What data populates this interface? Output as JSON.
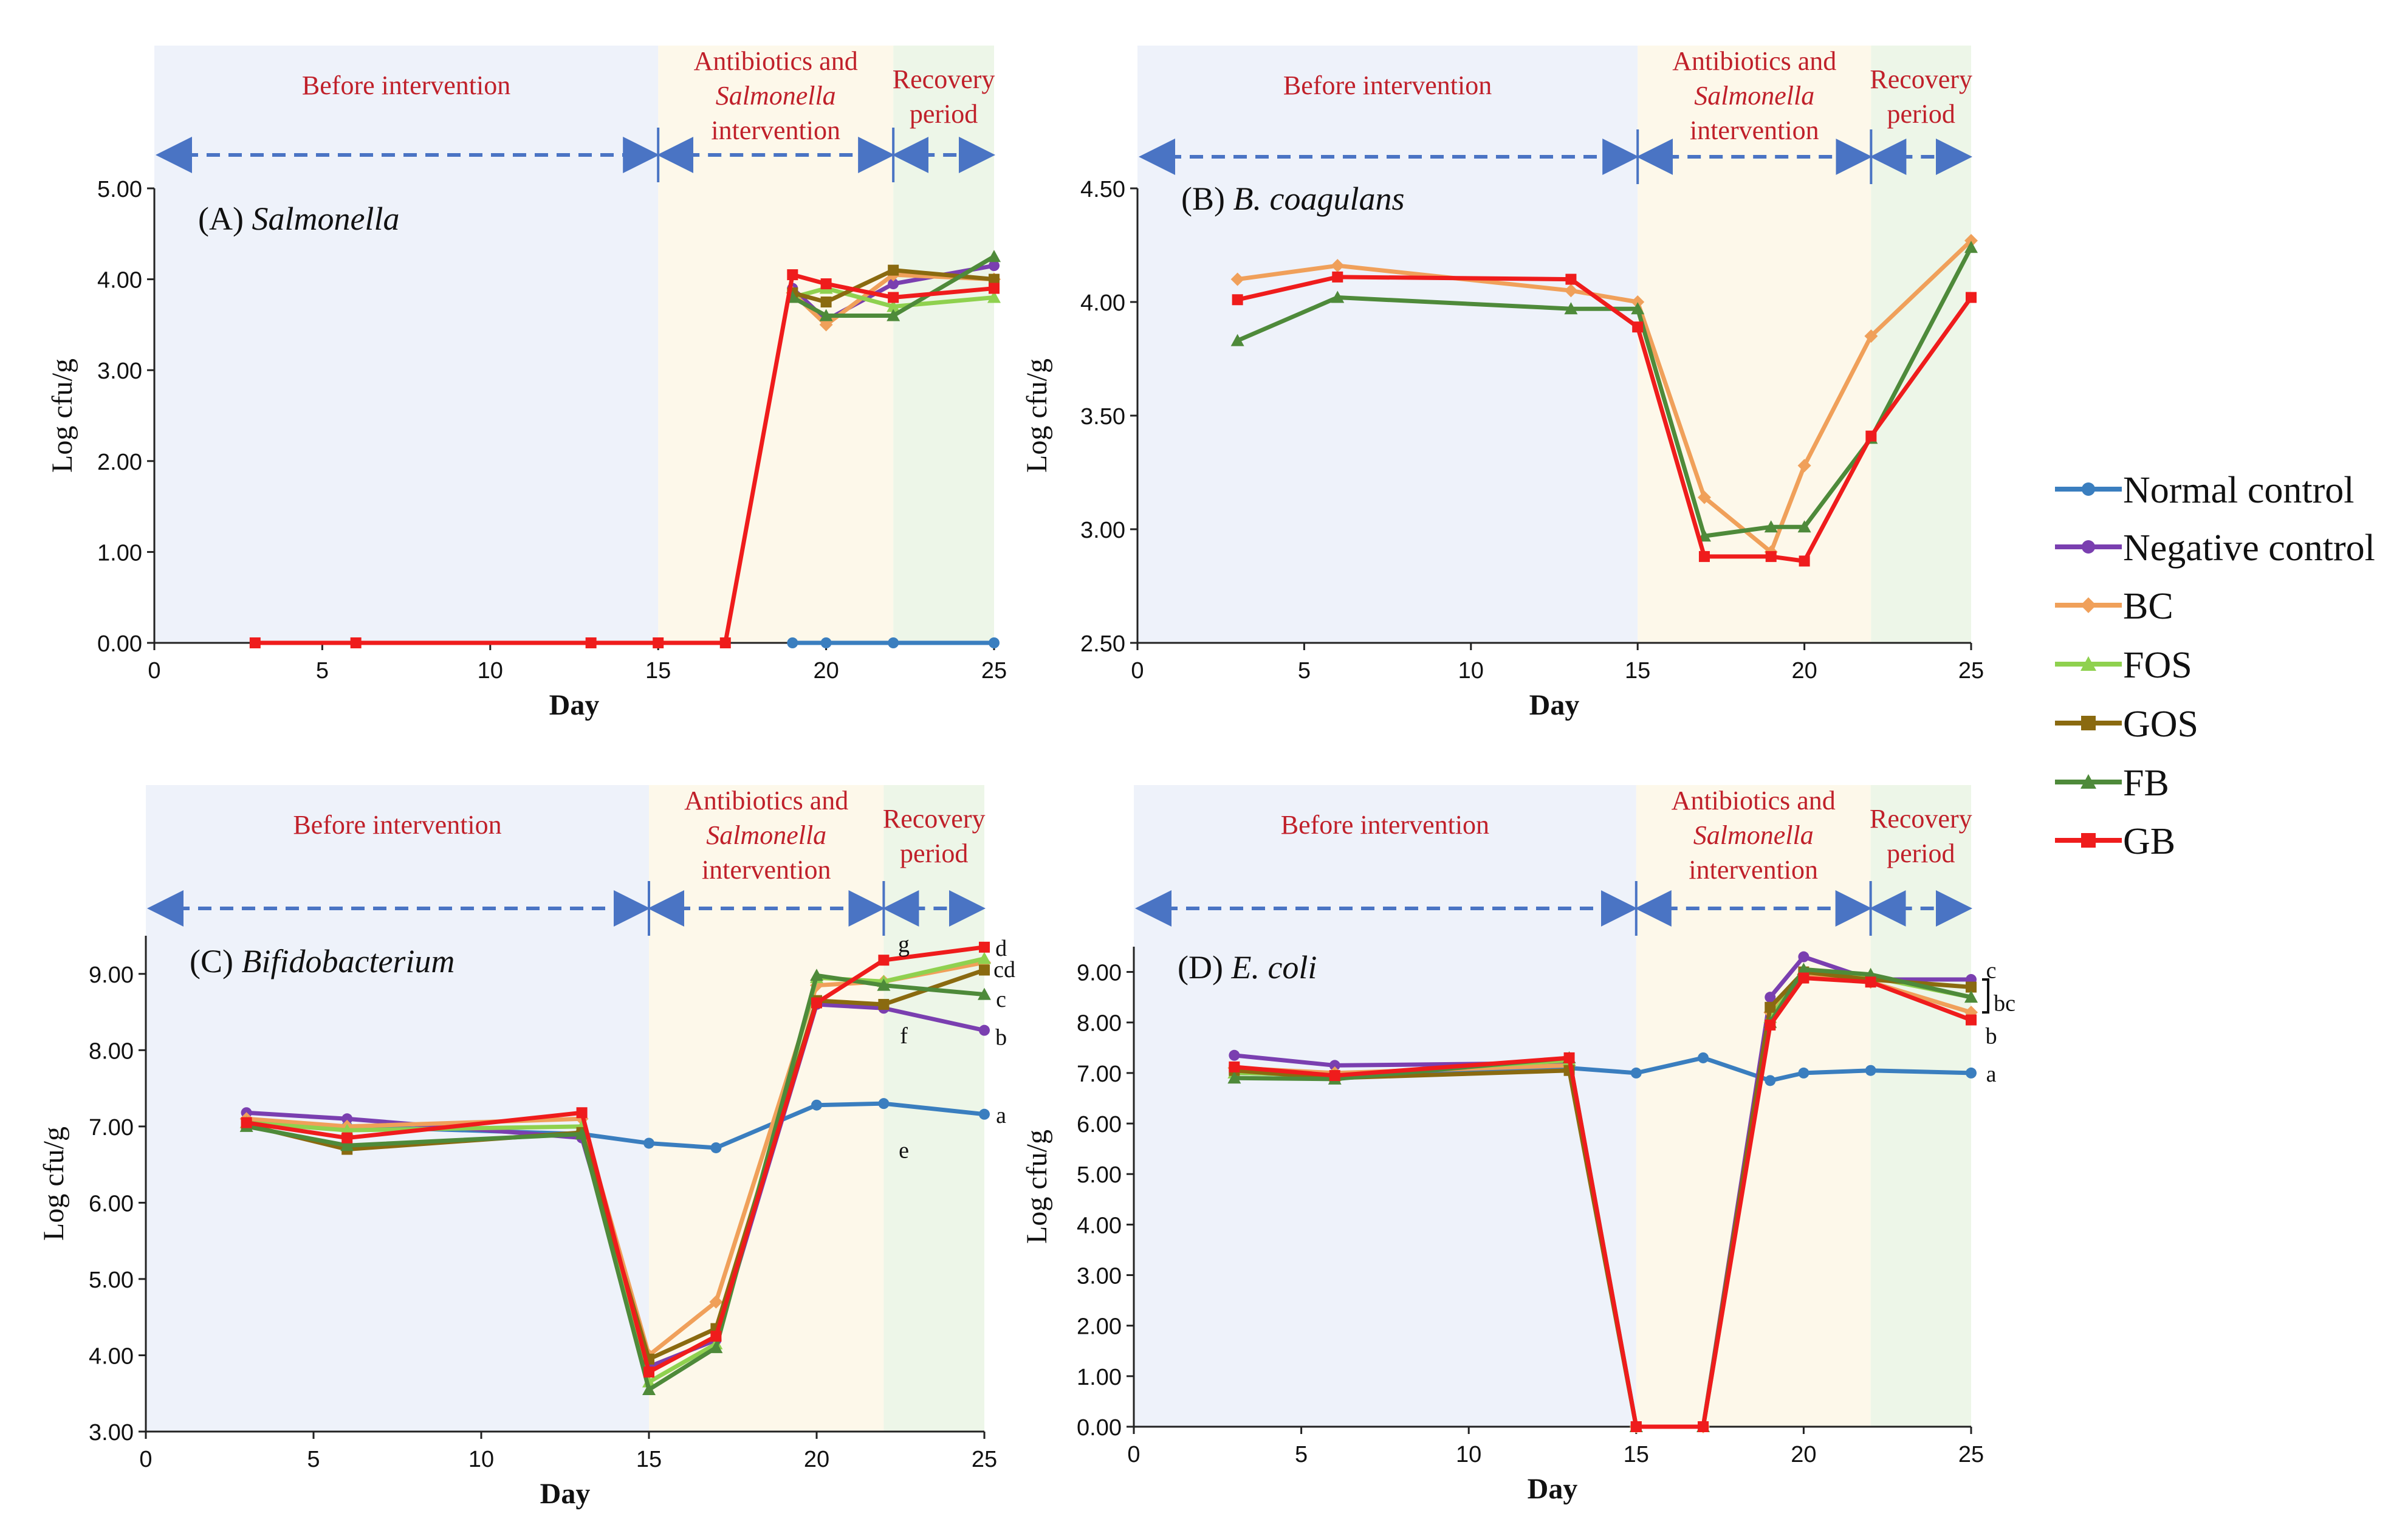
{
  "colors": {
    "normal": "#3a7ebf",
    "negative": "#7a3fb0",
    "bc": "#f0a05a",
    "fos": "#8fd14f",
    "gos": "#8a6a10",
    "fb": "#4e8a3a",
    "gb": "#ef1c1c",
    "before_bg": "#eef2fa",
    "abx_bg": "#fdf8ea",
    "recovery_bg": "#edf6e8",
    "period_text": "#c0202a",
    "arrow": "#4a74c4"
  },
  "legend": [
    "Normal control",
    "Negative control",
    "BC",
    "FOS",
    "GOS",
    "FB",
    "GB"
  ],
  "periods": {
    "before": "Before intervention",
    "abx_line1": "Antibiotics and",
    "abx_italic": "Salmonella",
    "abx_line3": "intervention",
    "recovery_line1": "Recovery",
    "recovery_line2": "period"
  },
  "chart_data": [
    {
      "id": "A",
      "type": "line",
      "panel_letter": "(A)",
      "title": "Salmonella",
      "xlabel": "Day",
      "ylabel": "Log cfu/g",
      "xlim": [
        0,
        25
      ],
      "ylim": [
        0,
        5
      ],
      "xticks": [
        0,
        5,
        10,
        15,
        20,
        25
      ],
      "yticks": [
        0,
        1,
        2,
        3,
        4,
        5
      ],
      "ytick_labels": [
        "0.00",
        "1.00",
        "2.00",
        "3.00",
        "4.00",
        "5.00"
      ],
      "series": [
        {
          "name": "Normal control",
          "key": "normal",
          "x": [
            19,
            20,
            22,
            25
          ],
          "y": [
            0,
            0,
            0,
            0
          ]
        },
        {
          "name": "Negative control",
          "key": "negative",
          "x": [
            19,
            20,
            22,
            25
          ],
          "y": [
            3.9,
            3.55,
            3.95,
            4.15
          ]
        },
        {
          "name": "BC",
          "key": "bc",
          "x": [
            19,
            20,
            22,
            25
          ],
          "y": [
            3.85,
            3.5,
            4.05,
            4.0
          ]
        },
        {
          "name": "FOS",
          "key": "fos",
          "x": [
            19,
            20,
            22,
            25
          ],
          "y": [
            3.8,
            3.9,
            3.7,
            3.8
          ]
        },
        {
          "name": "GOS",
          "key": "gos",
          "x": [
            19,
            20,
            22,
            25
          ],
          "y": [
            3.85,
            3.75,
            4.1,
            4.0
          ]
        },
        {
          "name": "FB",
          "key": "fb",
          "x": [
            19,
            20,
            22,
            25
          ],
          "y": [
            3.8,
            3.6,
            3.6,
            4.25
          ]
        },
        {
          "name": "GB",
          "key": "gb",
          "x": [
            3,
            6,
            13,
            15,
            17,
            19,
            20,
            22,
            25
          ],
          "y": [
            0,
            0,
            0,
            0,
            0,
            4.05,
            3.95,
            3.8,
            3.9
          ]
        }
      ],
      "annotations": []
    },
    {
      "id": "B",
      "type": "line",
      "panel_letter": "(B)",
      "title": "B. coagulans",
      "xlabel": "Day",
      "ylabel": "Log cfu/g",
      "xlim": [
        0,
        25
      ],
      "ylim": [
        2.5,
        4.5
      ],
      "xticks": [
        0,
        5,
        10,
        15,
        20,
        25
      ],
      "yticks": [
        2.5,
        3.0,
        3.5,
        4.0,
        4.5
      ],
      "ytick_labels": [
        "2.50",
        "3.00",
        "3.50",
        "4.00",
        "4.50"
      ],
      "series": [
        {
          "name": "BC",
          "key": "bc",
          "x": [
            3,
            6,
            13,
            15,
            17,
            19,
            20,
            22,
            25
          ],
          "y": [
            4.1,
            4.16,
            4.05,
            4.0,
            3.14,
            2.9,
            3.28,
            3.85,
            4.27
          ]
        },
        {
          "name": "FB",
          "key": "fb",
          "x": [
            3,
            6,
            13,
            15,
            17,
            19,
            20,
            22,
            25
          ],
          "y": [
            3.83,
            4.02,
            3.97,
            3.97,
            2.97,
            3.01,
            3.01,
            3.4,
            4.24
          ]
        },
        {
          "name": "GB",
          "key": "gb",
          "x": [
            3,
            6,
            13,
            15,
            17,
            19,
            20,
            22,
            25
          ],
          "y": [
            4.01,
            4.11,
            4.1,
            3.89,
            2.88,
            2.88,
            2.86,
            3.41,
            4.02
          ]
        }
      ],
      "annotations": []
    },
    {
      "id": "C",
      "type": "line",
      "panel_letter": "(C)",
      "title": "Bifidobacterium",
      "xlabel": "Day",
      "ylabel": "Log cfu/g",
      "xlim": [
        0,
        25
      ],
      "ylim": [
        3,
        9.5
      ],
      "xticks": [
        0,
        5,
        10,
        15,
        20,
        25
      ],
      "yticks": [
        3,
        4,
        5,
        6,
        7,
        8,
        9
      ],
      "ytick_labels": [
        "3.00",
        "4.00",
        "5.00",
        "6.00",
        "7.00",
        "8.00",
        "9.00"
      ],
      "series": [
        {
          "name": "Normal control",
          "key": "normal",
          "x": [
            3,
            6,
            13,
            15,
            17,
            20,
            22,
            25
          ],
          "y": [
            7.05,
            7.0,
            6.9,
            6.78,
            6.72,
            7.28,
            7.3,
            7.16
          ]
        },
        {
          "name": "Negative control",
          "key": "negative",
          "x": [
            3,
            6,
            13,
            15,
            17,
            20,
            22,
            25
          ],
          "y": [
            7.18,
            7.1,
            6.85,
            3.85,
            4.2,
            8.6,
            8.55,
            8.26
          ]
        },
        {
          "name": "BC",
          "key": "bc",
          "x": [
            3,
            6,
            13,
            15,
            17,
            20,
            22,
            25
          ],
          "y": [
            7.1,
            7.0,
            7.1,
            4.0,
            4.7,
            8.85,
            8.9,
            9.15
          ]
        },
        {
          "name": "FOS",
          "key": "fos",
          "x": [
            3,
            6,
            13,
            15,
            17,
            20,
            22,
            25
          ],
          "y": [
            7.05,
            6.95,
            7.0,
            3.65,
            4.15,
            8.95,
            8.9,
            9.2
          ]
        },
        {
          "name": "GOS",
          "key": "gos",
          "x": [
            3,
            6,
            13,
            15,
            17,
            20,
            22,
            25
          ],
          "y": [
            7.02,
            6.7,
            6.92,
            3.95,
            4.35,
            8.65,
            8.6,
            9.05
          ]
        },
        {
          "name": "FB",
          "key": "fb",
          "x": [
            3,
            6,
            13,
            15,
            17,
            20,
            22,
            25
          ],
          "y": [
            7.0,
            6.75,
            6.9,
            3.55,
            4.1,
            8.98,
            8.85,
            8.73
          ]
        },
        {
          "name": "GB",
          "key": "gb",
          "x": [
            3,
            6,
            13,
            15,
            17,
            20,
            22,
            25
          ],
          "y": [
            7.05,
            6.85,
            7.18,
            3.78,
            4.25,
            8.62,
            9.18,
            9.35
          ]
        }
      ],
      "annotations": [
        {
          "text": "g",
          "x": 22.6,
          "y": 9.4
        },
        {
          "text": "d",
          "x": 25.5,
          "y": 9.35
        },
        {
          "text": "cd",
          "x": 25.6,
          "y": 9.07
        },
        {
          "text": "c",
          "x": 25.5,
          "y": 8.68
        },
        {
          "text": "f",
          "x": 22.6,
          "y": 8.2
        },
        {
          "text": "b",
          "x": 25.5,
          "y": 8.18
        },
        {
          "text": "e",
          "x": 22.6,
          "y": 6.7
        },
        {
          "text": "a",
          "x": 25.5,
          "y": 7.16
        }
      ]
    },
    {
      "id": "D",
      "type": "line",
      "panel_letter": "(D)",
      "title": "E. coli",
      "xlabel": "Day",
      "ylabel": "Log cfu/g",
      "xlim": [
        0,
        25
      ],
      "ylim": [
        0,
        9.5
      ],
      "xticks": [
        0,
        5,
        10,
        15,
        20,
        25
      ],
      "yticks": [
        0,
        1,
        2,
        3,
        4,
        5,
        6,
        7,
        8,
        9
      ],
      "ytick_labels": [
        "0.00",
        "1.00",
        "2.00",
        "3.00",
        "4.00",
        "5.00",
        "6.00",
        "7.00",
        "8.00",
        "9.00"
      ],
      "series": [
        {
          "name": "Normal control",
          "key": "normal",
          "x": [
            3,
            6,
            13,
            15,
            17,
            19,
            20,
            22,
            25
          ],
          "y": [
            7.0,
            6.95,
            7.1,
            7.0,
            7.3,
            6.85,
            7.0,
            7.05,
            7.0
          ]
        },
        {
          "name": "Negative control",
          "key": "negative",
          "x": [
            3,
            6,
            13,
            15,
            17,
            19,
            20,
            22,
            25
          ],
          "y": [
            7.35,
            7.15,
            7.2,
            0,
            0,
            8.5,
            9.3,
            8.85,
            8.85
          ]
        },
        {
          "name": "BC",
          "key": "bc",
          "x": [
            3,
            6,
            13,
            15,
            17,
            19,
            20,
            22,
            25
          ],
          "y": [
            7.1,
            7.0,
            7.15,
            0,
            0,
            8.2,
            8.95,
            8.8,
            8.2
          ]
        },
        {
          "name": "FOS",
          "key": "fos",
          "x": [
            3,
            6,
            13,
            15,
            17,
            19,
            20,
            22,
            25
          ],
          "y": [
            7.0,
            6.95,
            7.25,
            0,
            0,
            8.1,
            9.0,
            8.9,
            8.5
          ]
        },
        {
          "name": "GOS",
          "key": "gos",
          "x": [
            3,
            6,
            13,
            15,
            17,
            19,
            20,
            22,
            25
          ],
          "y": [
            7.05,
            6.9,
            7.05,
            0,
            0,
            8.3,
            9.0,
            8.85,
            8.7
          ]
        },
        {
          "name": "FB",
          "key": "fb",
          "x": [
            3,
            6,
            13,
            15,
            17,
            19,
            20,
            22,
            25
          ],
          "y": [
            6.9,
            6.88,
            7.3,
            0,
            0,
            8.0,
            9.05,
            8.95,
            8.5
          ]
        },
        {
          "name": "GB",
          "key": "gb",
          "x": [
            3,
            6,
            13,
            15,
            17,
            19,
            20,
            22,
            25
          ],
          "y": [
            7.12,
            6.95,
            7.3,
            0,
            0,
            7.95,
            8.88,
            8.8,
            8.05
          ]
        }
      ],
      "annotations": [
        {
          "text": "c",
          "x": 25.6,
          "y": 9.05
        },
        {
          "text": "bc",
          "x": 26.0,
          "y": 8.4
        },
        {
          "text": "b",
          "x": 25.6,
          "y": 7.75
        },
        {
          "text": "a",
          "x": 25.6,
          "y": 7.0
        }
      ]
    }
  ]
}
